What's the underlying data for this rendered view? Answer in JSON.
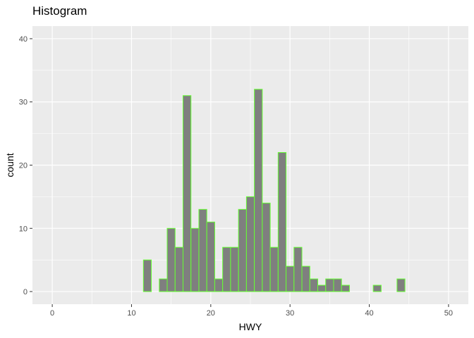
{
  "chart_data": {
    "type": "bar",
    "title": "Histogram",
    "xlabel": "HWY",
    "ylabel": "count",
    "xlim": [
      -2.5,
      52.5
    ],
    "ylim": [
      -2,
      42
    ],
    "x_ticks": [
      0,
      10,
      20,
      30,
      40,
      50
    ],
    "y_ticks": [
      0,
      10,
      20,
      30,
      40
    ],
    "bin_width": 1,
    "bins": [
      {
        "x": 12,
        "count": 5
      },
      {
        "x": 13,
        "count": 0
      },
      {
        "x": 14,
        "count": 2
      },
      {
        "x": 15,
        "count": 10
      },
      {
        "x": 16,
        "count": 7
      },
      {
        "x": 17,
        "count": 31
      },
      {
        "x": 18,
        "count": 10
      },
      {
        "x": 19,
        "count": 13
      },
      {
        "x": 20,
        "count": 11
      },
      {
        "x": 21,
        "count": 2
      },
      {
        "x": 22,
        "count": 7
      },
      {
        "x": 23,
        "count": 7
      },
      {
        "x": 24,
        "count": 13
      },
      {
        "x": 25,
        "count": 15
      },
      {
        "x": 26,
        "count": 32
      },
      {
        "x": 27,
        "count": 14
      },
      {
        "x": 28,
        "count": 7
      },
      {
        "x": 29,
        "count": 22
      },
      {
        "x": 30,
        "count": 4
      },
      {
        "x": 31,
        "count": 7
      },
      {
        "x": 32,
        "count": 4
      },
      {
        "x": 33,
        "count": 2
      },
      {
        "x": 34,
        "count": 1
      },
      {
        "x": 35,
        "count": 2
      },
      {
        "x": 36,
        "count": 2
      },
      {
        "x": 37,
        "count": 1
      },
      {
        "x": 38,
        "count": 0
      },
      {
        "x": 39,
        "count": 0
      },
      {
        "x": 40,
        "count": 0
      },
      {
        "x": 41,
        "count": 1
      },
      {
        "x": 42,
        "count": 0
      },
      {
        "x": 43,
        "count": 0
      },
      {
        "x": 44,
        "count": 2
      }
    ],
    "grid": true,
    "colors": {
      "panel_background": "#ebebeb",
      "grid_line": "#ffffff",
      "bar_fill": "#7f7f7f",
      "bar_outline": "#66ff33"
    }
  }
}
